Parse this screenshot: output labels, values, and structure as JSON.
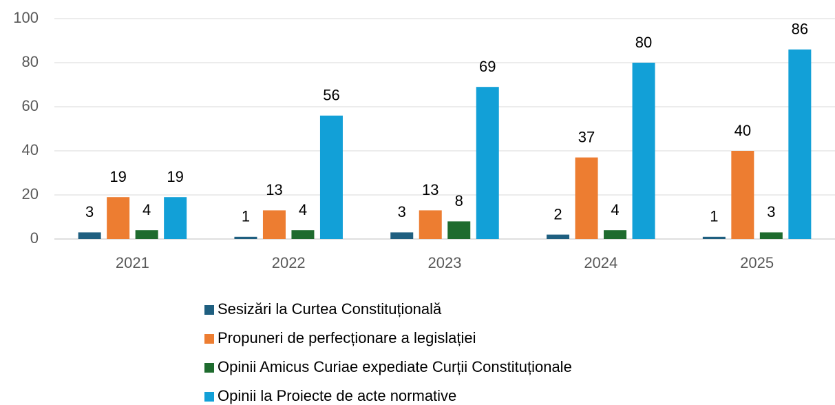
{
  "chart_data": {
    "type": "bar",
    "categories": [
      "2021",
      "2022",
      "2023",
      "2024",
      "2025"
    ],
    "series": [
      {
        "name": "Sesizări la Curtea Constituțională",
        "color": "#1f5f80",
        "values": [
          3,
          1,
          3,
          2,
          1
        ]
      },
      {
        "name": "Propuneri de perfecționare a legislației",
        "color": "#ed7d31",
        "values": [
          19,
          13,
          13,
          37,
          40
        ]
      },
      {
        "name": "Opinii Amicus Curiae expediate Curții Constituționale",
        "color": "#1e6b2e",
        "values": [
          4,
          4,
          8,
          4,
          3
        ]
      },
      {
        "name": "Opinii la Proiecte de acte normative",
        "color": "#12a0d7",
        "values": [
          19,
          56,
          69,
          80,
          86
        ]
      }
    ],
    "ylim": [
      0,
      100
    ],
    "yticks": [
      0,
      20,
      40,
      60,
      80,
      100
    ],
    "grid": true,
    "legend": "bottom"
  }
}
